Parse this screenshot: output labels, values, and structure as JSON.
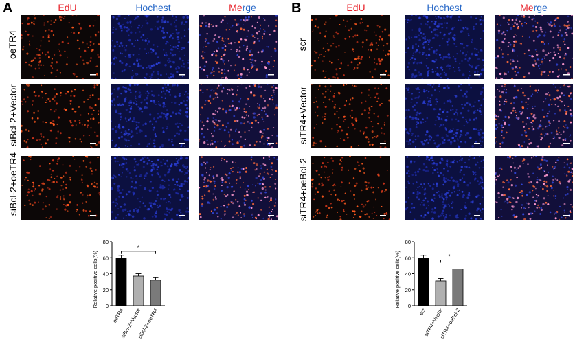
{
  "panels": [
    {
      "letter": "A",
      "columns": [
        {
          "label": "EdU",
          "color": "red"
        },
        {
          "label": "Hochest",
          "color": "blue"
        },
        {
          "label_part1": "Me",
          "label_part2": "rge",
          "color": "split"
        }
      ],
      "rows": [
        "oeTR4",
        "siBcl-2+Vector",
        "siBcl-2+oeTR4"
      ]
    },
    {
      "letter": "B",
      "columns": [
        {
          "label": "EdU",
          "color": "red"
        },
        {
          "label": "Hochest",
          "color": "blue"
        },
        {
          "label_part1": "Me",
          "label_part2": "rge",
          "color": "split"
        }
      ],
      "rows": [
        "scr",
        "siTR4+Vector",
        "siTR4+oeBcl-2"
      ]
    }
  ],
  "chart_data": [
    {
      "type": "bar",
      "ylabel": "Relative positive cells(%)",
      "categories": [
        "oeTR4",
        "siBcl-2+Vector",
        "siBcl-2+oeTR4"
      ],
      "values": [
        59,
        37,
        32
      ],
      "errors": [
        4,
        3,
        3
      ],
      "colors": [
        "#000000",
        "#b0b0b0",
        "#7a7a7a"
      ],
      "ylim": [
        0,
        80
      ],
      "yticks": [
        "0",
        "20",
        "40",
        "60",
        "80"
      ],
      "significance": {
        "from": 0,
        "to": 2,
        "label": "*"
      }
    },
    {
      "type": "bar",
      "ylabel": "Relative positive cells(%)",
      "categories": [
        "scr",
        "siTR4+Vector",
        "siTR4+oeBcl-2"
      ],
      "values": [
        59,
        31,
        46
      ],
      "errors": [
        4,
        3,
        6
      ],
      "colors": [
        "#000000",
        "#b0b0b0",
        "#7a7a7a"
      ],
      "ylim": [
        0,
        80
      ],
      "yticks": [
        "0",
        "20",
        "40",
        "60",
        "80"
      ],
      "significance": {
        "from": 1,
        "to": 2,
        "label": "*"
      }
    }
  ]
}
